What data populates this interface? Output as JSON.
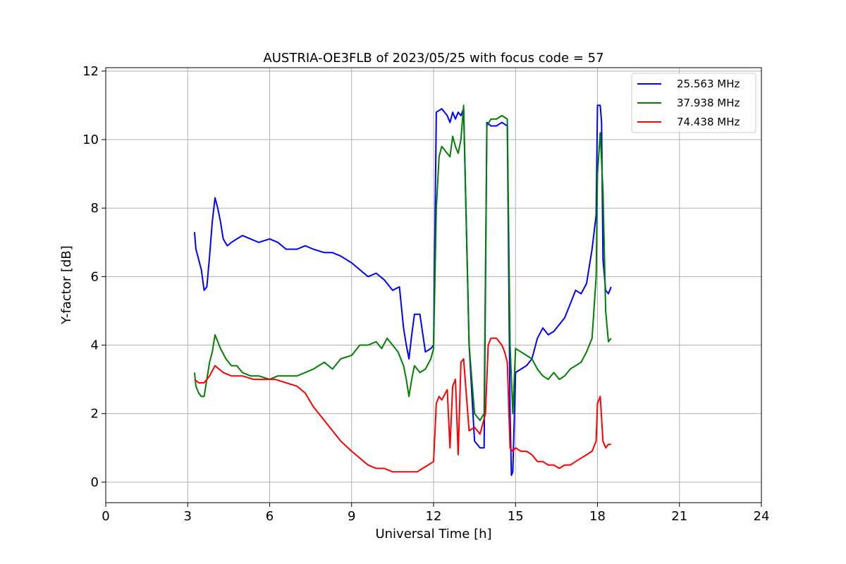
{
  "chart_data": {
    "type": "line",
    "title": "AUSTRIA-OE3FLB of 2023/05/25 with focus code = 57",
    "xlabel": "Universal Time [h]",
    "ylabel": "Y-factor [dB]",
    "xlim": [
      0,
      24
    ],
    "ylim": [
      -0.6,
      12.1
    ],
    "xticks": [
      0,
      3,
      6,
      9,
      12,
      15,
      18,
      21,
      24
    ],
    "yticks": [
      0,
      2,
      4,
      6,
      8,
      10,
      12
    ],
    "grid": true,
    "legend_position": "upper right",
    "series": [
      {
        "name": "25.563 MHz",
        "color": "#0000ff",
        "x": [
          3.25,
          3.3,
          3.4,
          3.5,
          3.6,
          3.7,
          3.8,
          3.9,
          4.0,
          4.1,
          4.2,
          4.3,
          4.45,
          4.6,
          4.8,
          5.0,
          5.3,
          5.6,
          6.0,
          6.3,
          6.6,
          7.0,
          7.3,
          7.6,
          8.0,
          8.3,
          8.6,
          9.0,
          9.3,
          9.6,
          9.9,
          10.2,
          10.5,
          10.75,
          10.9,
          11.0,
          11.1,
          11.2,
          11.3,
          11.5,
          11.7,
          11.9,
          12.0,
          12.1,
          12.3,
          12.5,
          12.6,
          12.7,
          12.8,
          12.9,
          13.0,
          13.1,
          13.3,
          13.5,
          13.7,
          13.85,
          13.95,
          14.1,
          14.3,
          14.5,
          14.7,
          14.8,
          14.85,
          14.9,
          15.0,
          15.2,
          15.4,
          15.6,
          15.8,
          16.0,
          16.2,
          16.4,
          16.6,
          16.8,
          17.0,
          17.2,
          17.4,
          17.6,
          17.8,
          17.95,
          18.0,
          18.1,
          18.15,
          18.2,
          18.3,
          18.4,
          18.5
        ],
        "y": [
          7.3,
          6.8,
          6.5,
          6.2,
          5.6,
          5.7,
          6.6,
          7.6,
          8.3,
          8.0,
          7.6,
          7.1,
          6.9,
          7.0,
          7.1,
          7.2,
          7.1,
          7.0,
          7.1,
          7.0,
          6.8,
          6.8,
          6.9,
          6.8,
          6.7,
          6.7,
          6.6,
          6.4,
          6.2,
          6.0,
          6.1,
          5.9,
          5.6,
          5.7,
          4.5,
          4.0,
          3.6,
          4.3,
          4.9,
          4.9,
          3.8,
          3.9,
          4.0,
          10.8,
          10.9,
          10.7,
          10.5,
          10.8,
          10.6,
          10.8,
          10.7,
          10.9,
          4.0,
          1.2,
          1.0,
          1.0,
          10.5,
          10.4,
          10.4,
          10.5,
          10.4,
          2.0,
          0.2,
          0.3,
          3.2,
          3.3,
          3.4,
          3.6,
          4.2,
          4.5,
          4.3,
          4.4,
          4.6,
          4.8,
          5.2,
          5.6,
          5.5,
          5.8,
          6.8,
          7.8,
          11.0,
          11.0,
          10.5,
          6.5,
          5.6,
          5.5,
          5.7
        ]
      },
      {
        "name": "37.938 MHz",
        "color": "#008000",
        "x": [
          3.25,
          3.3,
          3.4,
          3.5,
          3.6,
          3.7,
          3.8,
          3.9,
          4.0,
          4.2,
          4.4,
          4.6,
          4.8,
          5.0,
          5.3,
          5.6,
          6.0,
          6.3,
          6.6,
          7.0,
          7.3,
          7.6,
          8.0,
          8.3,
          8.6,
          9.0,
          9.3,
          9.6,
          9.9,
          10.1,
          10.3,
          10.5,
          10.7,
          10.9,
          11.0,
          11.1,
          11.2,
          11.3,
          11.5,
          11.7,
          11.9,
          12.0,
          12.1,
          12.2,
          12.3,
          12.5,
          12.6,
          12.7,
          12.8,
          12.9,
          13.0,
          13.1,
          13.3,
          13.5,
          13.7,
          13.85,
          13.95,
          14.1,
          14.3,
          14.5,
          14.7,
          14.8,
          14.9,
          15.0,
          15.2,
          15.4,
          15.6,
          15.8,
          16.0,
          16.2,
          16.4,
          16.6,
          16.8,
          17.0,
          17.2,
          17.4,
          17.6,
          17.8,
          17.95,
          18.0,
          18.1,
          18.2,
          18.3,
          18.4,
          18.5
        ],
        "y": [
          3.2,
          2.8,
          2.6,
          2.5,
          2.5,
          3.0,
          3.5,
          3.8,
          4.3,
          3.9,
          3.6,
          3.4,
          3.4,
          3.2,
          3.1,
          3.1,
          3.0,
          3.1,
          3.1,
          3.1,
          3.2,
          3.3,
          3.5,
          3.3,
          3.6,
          3.7,
          4.0,
          4.0,
          4.1,
          3.9,
          4.2,
          4.0,
          3.8,
          3.4,
          3.0,
          2.5,
          3.0,
          3.4,
          3.2,
          3.3,
          3.6,
          3.9,
          8.0,
          9.5,
          9.8,
          9.6,
          9.5,
          10.1,
          9.8,
          9.6,
          10.0,
          11.0,
          4.0,
          2.0,
          1.8,
          2.0,
          10.4,
          10.6,
          10.6,
          10.7,
          10.6,
          4.0,
          2.0,
          3.9,
          3.8,
          3.7,
          3.6,
          3.3,
          3.1,
          3.0,
          3.2,
          3.0,
          3.1,
          3.3,
          3.4,
          3.5,
          3.8,
          4.2,
          6.0,
          9.0,
          10.2,
          8.5,
          5.0,
          4.1,
          4.2
        ]
      },
      {
        "name": "74.438 MHz",
        "color": "#ff0000",
        "x": [
          3.25,
          3.4,
          3.6,
          3.8,
          4.0,
          4.3,
          4.6,
          5.0,
          5.4,
          5.8,
          6.2,
          6.6,
          7.0,
          7.3,
          7.6,
          8.0,
          8.3,
          8.6,
          9.0,
          9.3,
          9.6,
          9.9,
          10.2,
          10.5,
          10.8,
          11.0,
          11.2,
          11.4,
          11.6,
          11.8,
          12.0,
          12.1,
          12.2,
          12.3,
          12.5,
          12.6,
          12.7,
          12.8,
          12.9,
          13.0,
          13.1,
          13.3,
          13.5,
          13.7,
          13.9,
          14.0,
          14.1,
          14.3,
          14.5,
          14.6,
          14.7,
          14.8,
          14.9,
          15.0,
          15.2,
          15.4,
          15.6,
          15.8,
          16.0,
          16.2,
          16.4,
          16.6,
          16.8,
          17.0,
          17.2,
          17.4,
          17.6,
          17.8,
          17.95,
          18.0,
          18.1,
          18.2,
          18.3,
          18.4,
          18.5
        ],
        "y": [
          3.0,
          2.9,
          2.9,
          3.1,
          3.4,
          3.2,
          3.1,
          3.1,
          3.0,
          3.0,
          3.0,
          2.9,
          2.8,
          2.6,
          2.2,
          1.8,
          1.5,
          1.2,
          0.9,
          0.7,
          0.5,
          0.4,
          0.4,
          0.3,
          0.3,
          0.3,
          0.3,
          0.3,
          0.4,
          0.5,
          0.6,
          2.3,
          2.5,
          2.4,
          2.7,
          1.0,
          2.8,
          3.0,
          0.8,
          3.5,
          3.6,
          1.5,
          1.6,
          1.4,
          2.0,
          4.0,
          4.2,
          4.2,
          4.0,
          3.8,
          3.5,
          1.0,
          0.9,
          1.0,
          0.9,
          0.9,
          0.8,
          0.6,
          0.6,
          0.5,
          0.5,
          0.4,
          0.5,
          0.5,
          0.6,
          0.7,
          0.8,
          0.9,
          1.2,
          2.3,
          2.5,
          1.2,
          1.0,
          1.1,
          1.1
        ]
      }
    ]
  }
}
